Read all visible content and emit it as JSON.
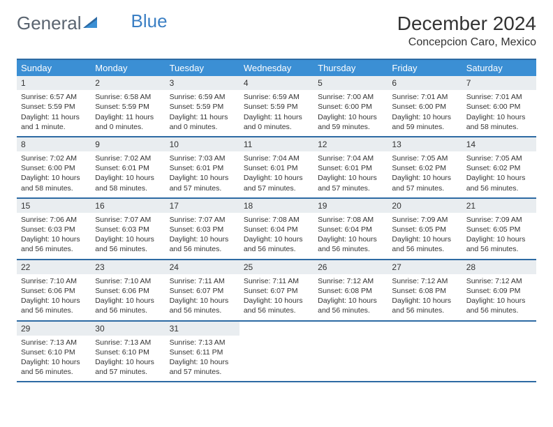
{
  "brand": {
    "word1": "General",
    "word2": "Blue"
  },
  "title": "December 2024",
  "location": "Concepcion Caro, Mexico",
  "colors": {
    "header_bg": "#3b8fd4",
    "header_text": "#ffffff",
    "row_border": "#2d6aa3",
    "daynum_bg": "#e9edf0",
    "text": "#333333",
    "logo_gray": "#5a6470",
    "logo_blue": "#3b7fc4",
    "page_bg": "#ffffff"
  },
  "typography": {
    "title_fontsize": 28,
    "location_fontsize": 16,
    "dayheader_fontsize": 13,
    "daynum_fontsize": 12,
    "body_fontsize": 10.5
  },
  "day_names": [
    "Sunday",
    "Monday",
    "Tuesday",
    "Wednesday",
    "Thursday",
    "Friday",
    "Saturday"
  ],
  "weeks": [
    [
      {
        "n": "1",
        "sunrise": "Sunrise: 6:57 AM",
        "sunset": "Sunset: 5:59 PM",
        "daylight": "Daylight: 11 hours and 1 minute."
      },
      {
        "n": "2",
        "sunrise": "Sunrise: 6:58 AM",
        "sunset": "Sunset: 5:59 PM",
        "daylight": "Daylight: 11 hours and 0 minutes."
      },
      {
        "n": "3",
        "sunrise": "Sunrise: 6:59 AM",
        "sunset": "Sunset: 5:59 PM",
        "daylight": "Daylight: 11 hours and 0 minutes."
      },
      {
        "n": "4",
        "sunrise": "Sunrise: 6:59 AM",
        "sunset": "Sunset: 5:59 PM",
        "daylight": "Daylight: 11 hours and 0 minutes."
      },
      {
        "n": "5",
        "sunrise": "Sunrise: 7:00 AM",
        "sunset": "Sunset: 6:00 PM",
        "daylight": "Daylight: 10 hours and 59 minutes."
      },
      {
        "n": "6",
        "sunrise": "Sunrise: 7:01 AM",
        "sunset": "Sunset: 6:00 PM",
        "daylight": "Daylight: 10 hours and 59 minutes."
      },
      {
        "n": "7",
        "sunrise": "Sunrise: 7:01 AM",
        "sunset": "Sunset: 6:00 PM",
        "daylight": "Daylight: 10 hours and 58 minutes."
      }
    ],
    [
      {
        "n": "8",
        "sunrise": "Sunrise: 7:02 AM",
        "sunset": "Sunset: 6:00 PM",
        "daylight": "Daylight: 10 hours and 58 minutes."
      },
      {
        "n": "9",
        "sunrise": "Sunrise: 7:02 AM",
        "sunset": "Sunset: 6:01 PM",
        "daylight": "Daylight: 10 hours and 58 minutes."
      },
      {
        "n": "10",
        "sunrise": "Sunrise: 7:03 AM",
        "sunset": "Sunset: 6:01 PM",
        "daylight": "Daylight: 10 hours and 57 minutes."
      },
      {
        "n": "11",
        "sunrise": "Sunrise: 7:04 AM",
        "sunset": "Sunset: 6:01 PM",
        "daylight": "Daylight: 10 hours and 57 minutes."
      },
      {
        "n": "12",
        "sunrise": "Sunrise: 7:04 AM",
        "sunset": "Sunset: 6:01 PM",
        "daylight": "Daylight: 10 hours and 57 minutes."
      },
      {
        "n": "13",
        "sunrise": "Sunrise: 7:05 AM",
        "sunset": "Sunset: 6:02 PM",
        "daylight": "Daylight: 10 hours and 57 minutes."
      },
      {
        "n": "14",
        "sunrise": "Sunrise: 7:05 AM",
        "sunset": "Sunset: 6:02 PM",
        "daylight": "Daylight: 10 hours and 56 minutes."
      }
    ],
    [
      {
        "n": "15",
        "sunrise": "Sunrise: 7:06 AM",
        "sunset": "Sunset: 6:03 PM",
        "daylight": "Daylight: 10 hours and 56 minutes."
      },
      {
        "n": "16",
        "sunrise": "Sunrise: 7:07 AM",
        "sunset": "Sunset: 6:03 PM",
        "daylight": "Daylight: 10 hours and 56 minutes."
      },
      {
        "n": "17",
        "sunrise": "Sunrise: 7:07 AM",
        "sunset": "Sunset: 6:03 PM",
        "daylight": "Daylight: 10 hours and 56 minutes."
      },
      {
        "n": "18",
        "sunrise": "Sunrise: 7:08 AM",
        "sunset": "Sunset: 6:04 PM",
        "daylight": "Daylight: 10 hours and 56 minutes."
      },
      {
        "n": "19",
        "sunrise": "Sunrise: 7:08 AM",
        "sunset": "Sunset: 6:04 PM",
        "daylight": "Daylight: 10 hours and 56 minutes."
      },
      {
        "n": "20",
        "sunrise": "Sunrise: 7:09 AM",
        "sunset": "Sunset: 6:05 PM",
        "daylight": "Daylight: 10 hours and 56 minutes."
      },
      {
        "n": "21",
        "sunrise": "Sunrise: 7:09 AM",
        "sunset": "Sunset: 6:05 PM",
        "daylight": "Daylight: 10 hours and 56 minutes."
      }
    ],
    [
      {
        "n": "22",
        "sunrise": "Sunrise: 7:10 AM",
        "sunset": "Sunset: 6:06 PM",
        "daylight": "Daylight: 10 hours and 56 minutes."
      },
      {
        "n": "23",
        "sunrise": "Sunrise: 7:10 AM",
        "sunset": "Sunset: 6:06 PM",
        "daylight": "Daylight: 10 hours and 56 minutes."
      },
      {
        "n": "24",
        "sunrise": "Sunrise: 7:11 AM",
        "sunset": "Sunset: 6:07 PM",
        "daylight": "Daylight: 10 hours and 56 minutes."
      },
      {
        "n": "25",
        "sunrise": "Sunrise: 7:11 AM",
        "sunset": "Sunset: 6:07 PM",
        "daylight": "Daylight: 10 hours and 56 minutes."
      },
      {
        "n": "26",
        "sunrise": "Sunrise: 7:12 AM",
        "sunset": "Sunset: 6:08 PM",
        "daylight": "Daylight: 10 hours and 56 minutes."
      },
      {
        "n": "27",
        "sunrise": "Sunrise: 7:12 AM",
        "sunset": "Sunset: 6:08 PM",
        "daylight": "Daylight: 10 hours and 56 minutes."
      },
      {
        "n": "28",
        "sunrise": "Sunrise: 7:12 AM",
        "sunset": "Sunset: 6:09 PM",
        "daylight": "Daylight: 10 hours and 56 minutes."
      }
    ],
    [
      {
        "n": "29",
        "sunrise": "Sunrise: 7:13 AM",
        "sunset": "Sunset: 6:10 PM",
        "daylight": "Daylight: 10 hours and 56 minutes."
      },
      {
        "n": "30",
        "sunrise": "Sunrise: 7:13 AM",
        "sunset": "Sunset: 6:10 PM",
        "daylight": "Daylight: 10 hours and 57 minutes."
      },
      {
        "n": "31",
        "sunrise": "Sunrise: 7:13 AM",
        "sunset": "Sunset: 6:11 PM",
        "daylight": "Daylight: 10 hours and 57 minutes."
      },
      null,
      null,
      null,
      null
    ]
  ]
}
